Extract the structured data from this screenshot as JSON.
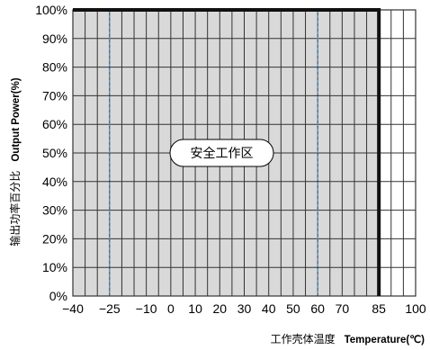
{
  "chart_data": {
    "type": "area",
    "title": "",
    "y_axis_label": {
      "cn": "输出功率百分比",
      "en": "Output Power(%)"
    },
    "x_axis_label": {
      "cn": "工作壳体温度",
      "en": "Temperature(℃)"
    },
    "x_ticks": [
      "−40",
      "−25",
      "−10",
      "0",
      "10",
      "20",
      "30",
      "40",
      "50",
      "60",
      "70",
      "85",
      "100"
    ],
    "x_tick_values": [
      -40,
      -25,
      -10,
      0,
      10,
      20,
      30,
      40,
      50,
      60,
      70,
      85,
      100
    ],
    "y_ticks": [
      "0%",
      "10%",
      "20%",
      "30%",
      "40%",
      "50%",
      "60%",
      "70%",
      "80%",
      "90%",
      "100%"
    ],
    "y_tick_values": [
      0,
      10,
      20,
      30,
      40,
      50,
      60,
      70,
      80,
      90,
      100
    ],
    "xlim": [
      -40,
      100
    ],
    "ylim": [
      0,
      100
    ],
    "grid": true,
    "series": [
      {
        "x": [
          -40,
          85,
          85
        ],
        "y": [
          100,
          100,
          0
        ]
      }
    ],
    "shaded_region": {
      "x": [
        -40,
        85
      ],
      "y": [
        0,
        100
      ],
      "color": "#d9d9d9"
    },
    "reference_lines": [
      {
        "x": -25,
        "style": "dashed",
        "color": "#3a9ad9"
      },
      {
        "x": 60,
        "style": "dashed",
        "color": "#3a9ad9"
      }
    ],
    "annotation": "安全工作区",
    "colors": {
      "fill": "#d9d9d9",
      "boundary": "#111111",
      "grid": "#333333",
      "dashed": "#3a9ad9"
    }
  }
}
